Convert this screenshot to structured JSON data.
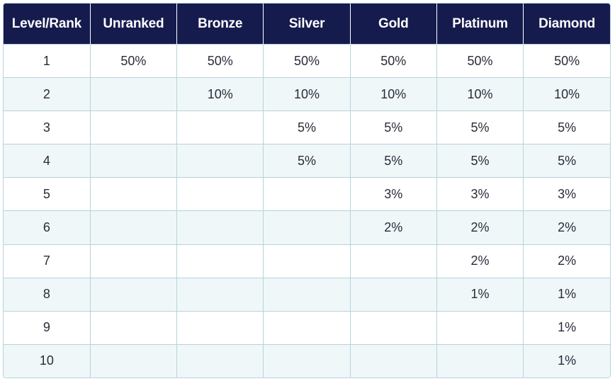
{
  "table": {
    "headers": [
      "Level/Rank",
      "Unranked",
      "Bronze",
      "Silver",
      "Gold",
      "Platinum",
      "Diamond"
    ],
    "rows": [
      [
        "1",
        "50%",
        "50%",
        "50%",
        "50%",
        "50%",
        "50%"
      ],
      [
        "2",
        "",
        "10%",
        "10%",
        "10%",
        "10%",
        "10%"
      ],
      [
        "3",
        "",
        "",
        "5%",
        "5%",
        "5%",
        "5%"
      ],
      [
        "4",
        "",
        "",
        "5%",
        "5%",
        "5%",
        "5%"
      ],
      [
        "5",
        "",
        "",
        "",
        "3%",
        "3%",
        "3%"
      ],
      [
        "6",
        "",
        "",
        "",
        "2%",
        "2%",
        "2%"
      ],
      [
        "7",
        "",
        "",
        "",
        "",
        "2%",
        "2%"
      ],
      [
        "8",
        "",
        "",
        "",
        "",
        "1%",
        "1%"
      ],
      [
        "9",
        "",
        "",
        "",
        "",
        "",
        "1%"
      ],
      [
        "10",
        "",
        "",
        "",
        "",
        "",
        "1%"
      ]
    ]
  },
  "colors": {
    "header_bg": "#161b4e",
    "header_text": "#ffffff",
    "row_alt_bg": "#eff7f8",
    "grid_line": "#b7d3dc",
    "cell_text": "#2b2b3a"
  }
}
